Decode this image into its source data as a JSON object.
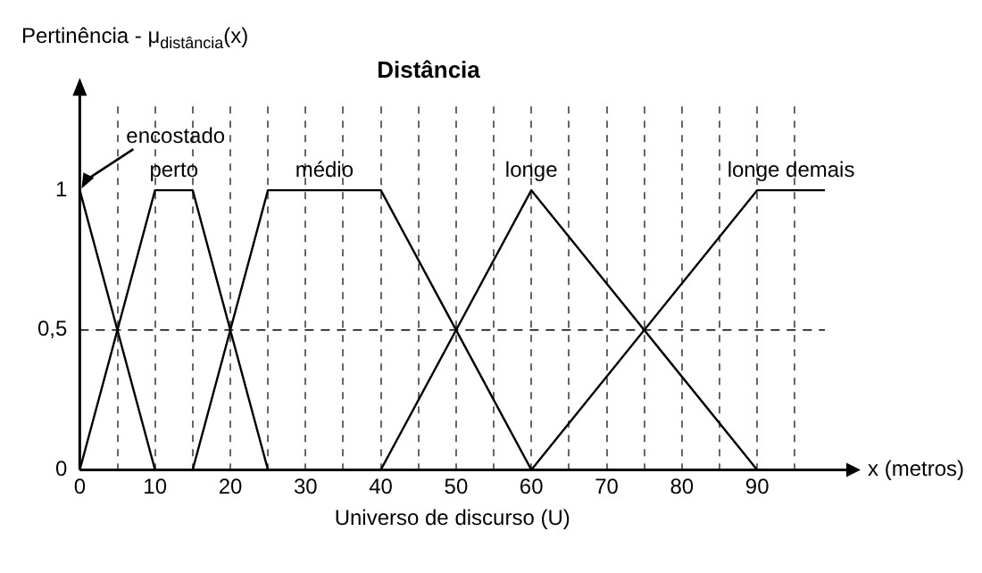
{
  "chart_data": {
    "type": "line",
    "title": "Distância",
    "ylabel": "Pertinência - μ$_{distância}$(x)",
    "xlabel": "Universo de discurso (U)",
    "annotations": [
      "x (metros)"
    ],
    "xlim": [
      0,
      99
    ],
    "xticks": [
      0,
      {
        "value": 5,
        "label": null
      },
      10,
      {
        "value": 15,
        "label": null
      },
      20,
      {
        "value": 25,
        "label": null
      },
      30,
      {
        "value": 35,
        "label": null
      },
      40,
      {
        "value": 45,
        "label": null
      },
      50,
      {
        "value": 55,
        "label": null
      },
      60,
      {
        "value": 65,
        "label": null
      },
      70,
      {
        "value": 75,
        "label": null
      },
      80,
      {
        "value": 85,
        "label": null
      },
      90,
      {
        "value": 95,
        "label": null
      }
    ],
    "ylim": [
      0,
      1.3
    ],
    "yticks": [
      0,
      {
        "value": 0.5,
        "label": "0,5"
      },
      1
    ],
    "grid": "x",
    "legend": false,
    "marker": "none",
    "line_style": "solid",
    "ref_lines": [
      {
        "axis": "y",
        "value": 0.5,
        "line_style": "dashed",
        "color": "#000000"
      }
    ],
    "series": [
      {
        "name": "encostado",
        "color": "#000000",
        "x": [
          0,
          10
        ],
        "values": [
          1,
          0
        ]
      },
      {
        "name": "perto",
        "color": "#000000",
        "x": [
          0,
          10,
          15,
          25
        ],
        "values": [
          0,
          1,
          1,
          0
        ]
      },
      {
        "name": "médio",
        "color": "#000000",
        "x": [
          15,
          25,
          40,
          60
        ],
        "values": [
          0,
          1,
          1,
          0
        ]
      },
      {
        "name": "longe",
        "color": "#000000",
        "x": [
          40,
          60,
          90
        ],
        "values": [
          0,
          1,
          0
        ]
      },
      {
        "name": "longe demais",
        "color": "#000000",
        "x": [
          60,
          90,
          99
        ],
        "values": [
          0,
          1,
          1
        ]
      }
    ]
  }
}
